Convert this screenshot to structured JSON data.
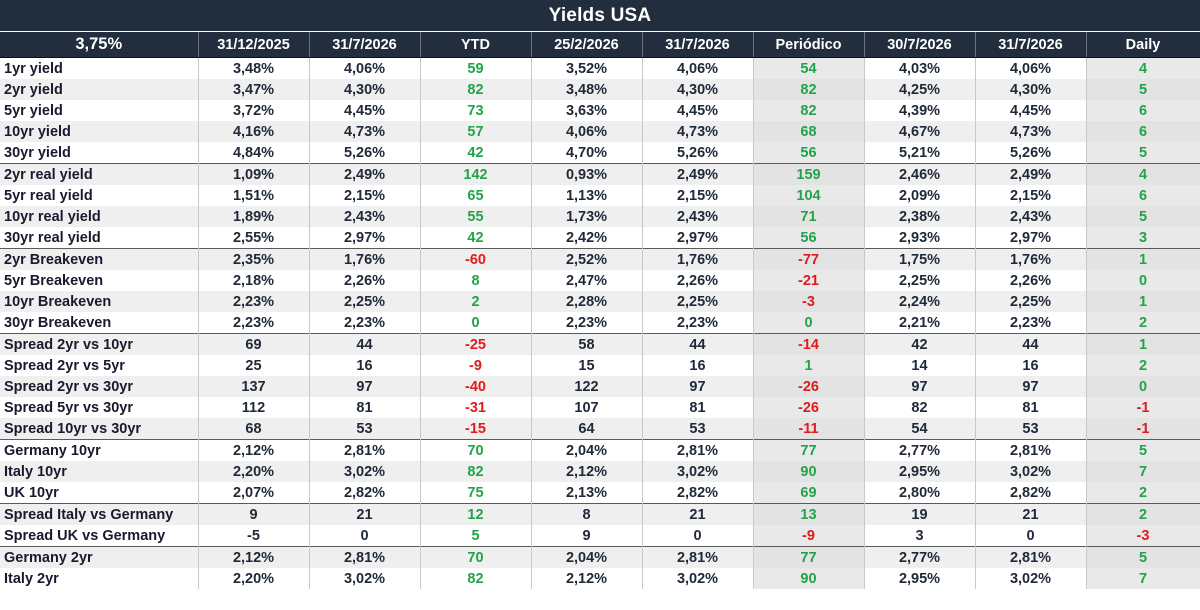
{
  "title": "Yields USA",
  "header": {
    "rate": "3,75%",
    "columns": [
      "31/12/2025",
      "31/7/2026",
      "YTD",
      "25/2/2026",
      "31/7/2026",
      "Periódico",
      "30/7/2026",
      "31/7/2026",
      "Daily"
    ]
  },
  "colors": {
    "header_bg": "#222d3d",
    "positive": "#22a34a",
    "negative": "#e01b1b"
  },
  "rows": [
    {
      "label": "1yr yield",
      "c": [
        "3,48%",
        "4,06%",
        "59",
        "3,52%",
        "4,06%",
        "54",
        "4,03%",
        "4,06%",
        "4"
      ]
    },
    {
      "label": "2yr yield",
      "c": [
        "3,47%",
        "4,30%",
        "82",
        "3,48%",
        "4,30%",
        "82",
        "4,25%",
        "4,30%",
        "5"
      ]
    },
    {
      "label": "5yr yield",
      "c": [
        "3,72%",
        "4,45%",
        "73",
        "3,63%",
        "4,45%",
        "82",
        "4,39%",
        "4,45%",
        "6"
      ]
    },
    {
      "label": "10yr yield",
      "c": [
        "4,16%",
        "4,73%",
        "57",
        "4,06%",
        "4,73%",
        "68",
        "4,67%",
        "4,73%",
        "6"
      ]
    },
    {
      "label": "30yr yield",
      "c": [
        "4,84%",
        "5,26%",
        "42",
        "4,70%",
        "5,26%",
        "56",
        "5,21%",
        "5,26%",
        "5"
      ]
    },
    {
      "label": "2yr real yield",
      "c": [
        "1,09%",
        "2,49%",
        "142",
        "0,93%",
        "2,49%",
        "159",
        "2,46%",
        "2,49%",
        "4"
      ]
    },
    {
      "label": "5yr real yield",
      "c": [
        "1,51%",
        "2,15%",
        "65",
        "1,13%",
        "2,15%",
        "104",
        "2,09%",
        "2,15%",
        "6"
      ]
    },
    {
      "label": "10yr real yield",
      "c": [
        "1,89%",
        "2,43%",
        "55",
        "1,73%",
        "2,43%",
        "71",
        "2,38%",
        "2,43%",
        "5"
      ]
    },
    {
      "label": "30yr real yield",
      "c": [
        "2,55%",
        "2,97%",
        "42",
        "2,42%",
        "2,97%",
        "56",
        "2,93%",
        "2,97%",
        "3"
      ]
    },
    {
      "label": "2yr Breakeven",
      "c": [
        "2,35%",
        "1,76%",
        "-60",
        "2,52%",
        "1,76%",
        "-77",
        "1,75%",
        "1,76%",
        "1"
      ]
    },
    {
      "label": "5yr Breakeven",
      "c": [
        "2,18%",
        "2,26%",
        "8",
        "2,47%",
        "2,26%",
        "-21",
        "2,25%",
        "2,26%",
        "0"
      ]
    },
    {
      "label": "10yr Breakeven",
      "c": [
        "2,23%",
        "2,25%",
        "2",
        "2,28%",
        "2,25%",
        "-3",
        "2,24%",
        "2,25%",
        "1"
      ]
    },
    {
      "label": "30yr Breakeven",
      "c": [
        "2,23%",
        "2,23%",
        "0",
        "2,23%",
        "2,23%",
        "0",
        "2,21%",
        "2,23%",
        "2"
      ]
    },
    {
      "label": "Spread 2yr vs 10yr",
      "c": [
        "69",
        "44",
        "-25",
        "58",
        "44",
        "-14",
        "42",
        "44",
        "1"
      ]
    },
    {
      "label": "Spread 2yr vs 5yr",
      "c": [
        "25",
        "16",
        "-9",
        "15",
        "16",
        "1",
        "14",
        "16",
        "2"
      ]
    },
    {
      "label": "Spread 2yr vs 30yr",
      "c": [
        "137",
        "97",
        "-40",
        "122",
        "97",
        "-26",
        "97",
        "97",
        "0"
      ]
    },
    {
      "label": "Spread 5yr vs 30yr",
      "c": [
        "112",
        "81",
        "-31",
        "107",
        "81",
        "-26",
        "82",
        "81",
        "-1"
      ]
    },
    {
      "label": "Spread 10yr vs 30yr",
      "c": [
        "68",
        "53",
        "-15",
        "64",
        "53",
        "-11",
        "54",
        "53",
        "-1"
      ]
    },
    {
      "label": "Germany 10yr",
      "c": [
        "2,12%",
        "2,81%",
        "70",
        "2,04%",
        "2,81%",
        "77",
        "2,77%",
        "2,81%",
        "5"
      ]
    },
    {
      "label": "Italy 10yr",
      "c": [
        "2,20%",
        "3,02%",
        "82",
        "2,12%",
        "3,02%",
        "90",
        "2,95%",
        "3,02%",
        "7"
      ]
    },
    {
      "label": "UK 10yr",
      "c": [
        "2,07%",
        "2,82%",
        "75",
        "2,13%",
        "2,82%",
        "69",
        "2,80%",
        "2,82%",
        "2"
      ]
    },
    {
      "label": "Spread Italy vs Germany",
      "c": [
        "9",
        "21",
        "12",
        "8",
        "21",
        "13",
        "19",
        "21",
        "2"
      ]
    },
    {
      "label": "Spread UK vs Germany",
      "c": [
        "-5",
        "0",
        "5",
        "9",
        "0",
        "-9",
        "3",
        "0",
        "-3"
      ]
    },
    {
      "label": "Germany 2yr",
      "c": [
        "2,12%",
        "2,81%",
        "70",
        "2,04%",
        "2,81%",
        "77",
        "2,77%",
        "2,81%",
        "5"
      ]
    },
    {
      "label": "Italy 2yr",
      "c": [
        "2,20%",
        "3,02%",
        "82",
        "2,12%",
        "3,02%",
        "90",
        "2,95%",
        "3,02%",
        "7"
      ]
    }
  ]
}
